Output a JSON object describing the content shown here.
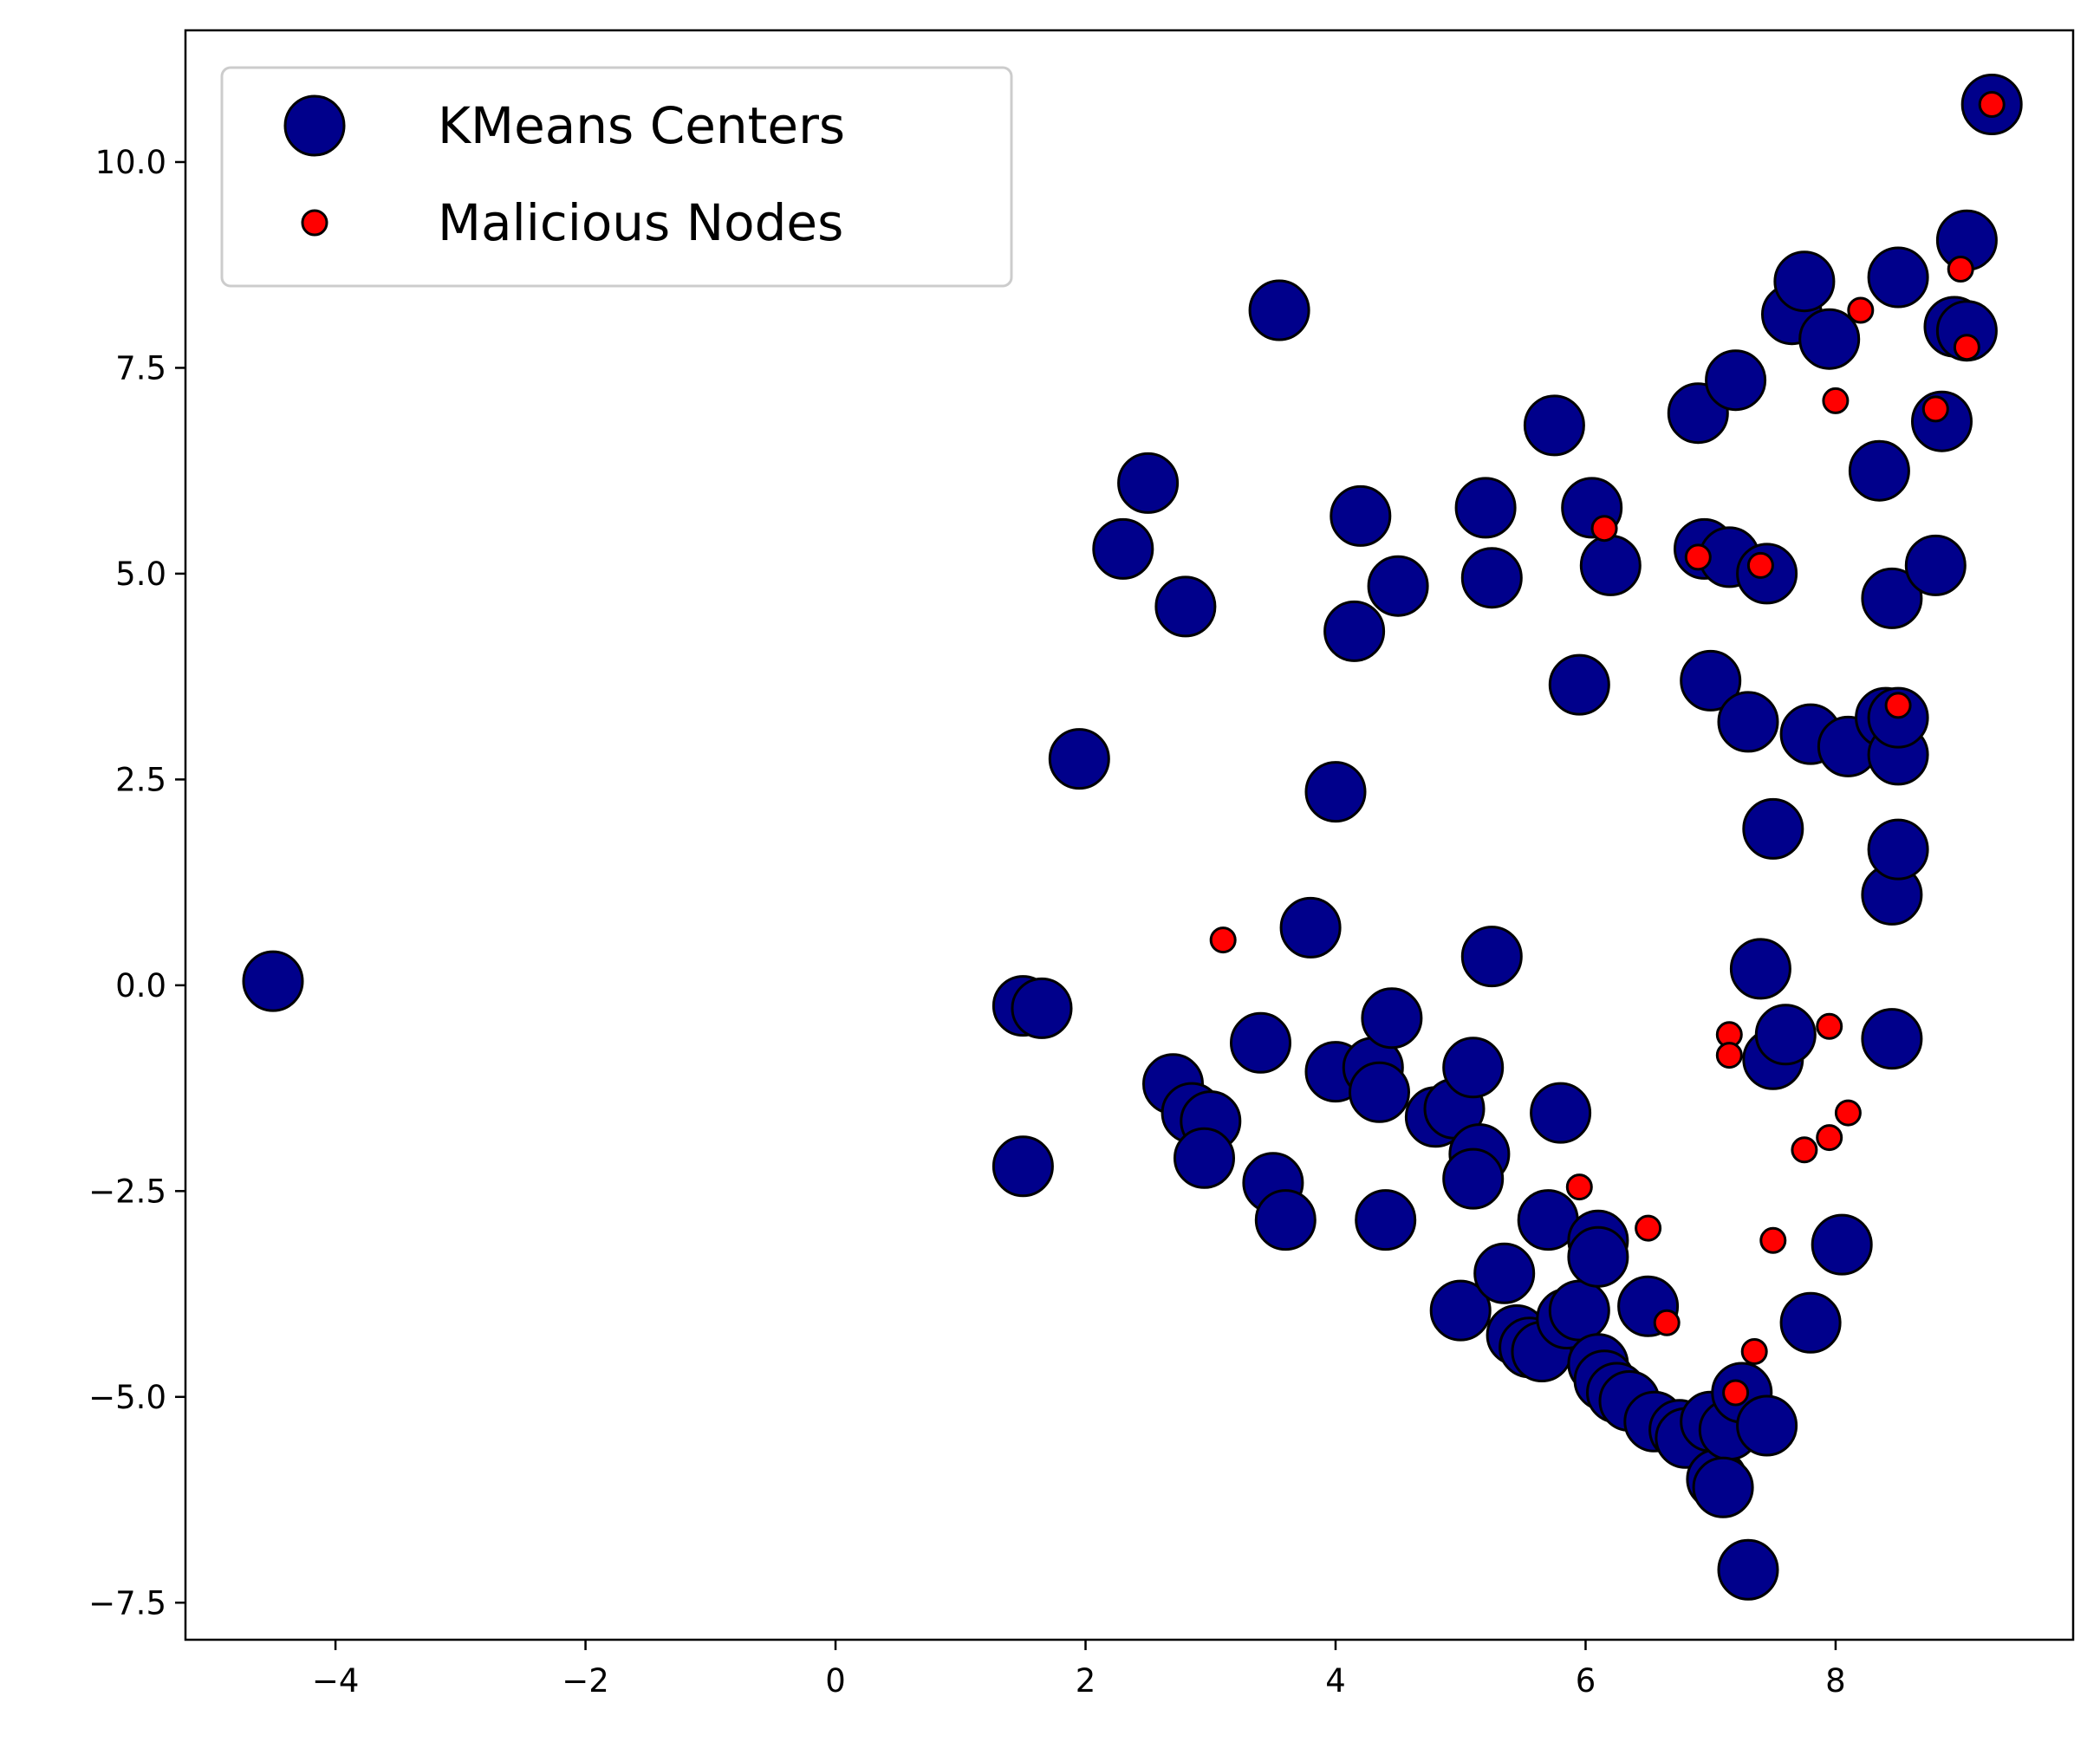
{
  "chart_data": {
    "type": "scatter",
    "title": "",
    "xlabel": "",
    "ylabel": "",
    "xlim": [
      -5.2,
      9.9
    ],
    "ylim": [
      -7.95,
      11.6
    ],
    "grid": false,
    "legend_position": "top-left",
    "x_ticks": [
      {
        "value": -4,
        "label": "−4"
      },
      {
        "value": -2,
        "label": "−2"
      },
      {
        "value": 0,
        "label": "0"
      },
      {
        "value": 2,
        "label": "2"
      },
      {
        "value": 4,
        "label": "4"
      },
      {
        "value": 6,
        "label": "6"
      },
      {
        "value": 8,
        "label": "8"
      }
    ],
    "y_ticks": [
      {
        "value": -7.5,
        "label": "−7.5"
      },
      {
        "value": -5.0,
        "label": "−5.0"
      },
      {
        "value": -2.5,
        "label": "−2.5"
      },
      {
        "value": 0.0,
        "label": "0.0"
      },
      {
        "value": 2.5,
        "label": "2.5"
      },
      {
        "value": 5.0,
        "label": "5.0"
      },
      {
        "value": 7.5,
        "label": "7.5"
      },
      {
        "value": 10.0,
        "label": "10.0"
      }
    ],
    "series": [
      {
        "name": "KMeans Centers",
        "color": "#00008b",
        "edge_color": "#000000",
        "marker": "large-circle",
        "points": [
          [
            -4.5,
            0.05
          ],
          [
            1.5,
            -0.25
          ],
          [
            1.65,
            -0.28
          ],
          [
            1.5,
            -2.2
          ],
          [
            1.95,
            2.75
          ],
          [
            2.3,
            5.3
          ],
          [
            2.5,
            6.1
          ],
          [
            2.8,
            4.6
          ],
          [
            2.7,
            -1.2
          ],
          [
            2.85,
            -1.55
          ],
          [
            3.0,
            -1.65
          ],
          [
            2.95,
            -2.1
          ],
          [
            3.5,
            -2.4
          ],
          [
            3.6,
            -2.85
          ],
          [
            3.4,
            -0.7
          ],
          [
            3.55,
            8.2
          ],
          [
            3.8,
            0.7
          ],
          [
            4.0,
            2.35
          ],
          [
            4.0,
            -1.05
          ],
          [
            4.3,
            -1.0
          ],
          [
            4.35,
            -1.3
          ],
          [
            4.45,
            -0.4
          ],
          [
            4.4,
            -2.85
          ],
          [
            4.2,
            5.7
          ],
          [
            4.15,
            4.3
          ],
          [
            4.5,
            4.85
          ],
          [
            4.8,
            -1.6
          ],
          [
            4.95,
            -1.5
          ],
          [
            5.1,
            -1.0
          ],
          [
            5.15,
            -2.05
          ],
          [
            5.1,
            -2.35
          ],
          [
            5.2,
            5.8
          ],
          [
            5.25,
            4.95
          ],
          [
            5.25,
            0.35
          ],
          [
            5.0,
            -3.95
          ],
          [
            5.35,
            -3.5
          ],
          [
            5.45,
            -4.25
          ],
          [
            5.55,
            -4.4
          ],
          [
            5.65,
            -4.45
          ],
          [
            5.7,
            -2.85
          ],
          [
            5.75,
            6.8
          ],
          [
            5.8,
            -1.55
          ],
          [
            5.85,
            -4.05
          ],
          [
            5.95,
            -3.95
          ],
          [
            5.95,
            3.65
          ],
          [
            6.05,
            5.8
          ],
          [
            6.1,
            -3.1
          ],
          [
            6.1,
            -3.3
          ],
          [
            6.1,
            -4.6
          ],
          [
            6.15,
            -4.8
          ],
          [
            6.2,
            5.1
          ],
          [
            6.25,
            -4.95
          ],
          [
            6.35,
            -5.05
          ],
          [
            6.5,
            -3.9
          ],
          [
            6.55,
            -5.3
          ],
          [
            6.75,
            -5.4
          ],
          [
            6.8,
            -5.5
          ],
          [
            6.9,
            6.95
          ],
          [
            6.95,
            5.3
          ],
          [
            7.0,
            3.7
          ],
          [
            7.0,
            -5.3
          ],
          [
            7.05,
            -6.0
          ],
          [
            7.15,
            -5.4
          ],
          [
            7.15,
            5.2
          ],
          [
            7.1,
            -6.1
          ],
          [
            7.2,
            7.35
          ],
          [
            7.25,
            -4.95
          ],
          [
            7.3,
            3.2
          ],
          [
            7.3,
            -7.1
          ],
          [
            7.4,
            0.2
          ],
          [
            7.45,
            5.0
          ],
          [
            7.45,
            -5.35
          ],
          [
            7.5,
            1.9
          ],
          [
            7.5,
            -0.9
          ],
          [
            7.6,
            -0.6
          ],
          [
            7.65,
            8.15
          ],
          [
            7.75,
            8.55
          ],
          [
            7.8,
            3.05
          ],
          [
            7.8,
            -4.1
          ],
          [
            7.95,
            7.85
          ],
          [
            8.05,
            -3.15
          ],
          [
            8.1,
            2.9
          ],
          [
            8.35,
            6.25
          ],
          [
            8.4,
            3.25
          ],
          [
            8.45,
            1.1
          ],
          [
            8.45,
            4.7
          ],
          [
            8.5,
            2.8
          ],
          [
            8.5,
            3.25
          ],
          [
            8.5,
            1.65
          ],
          [
            8.5,
            8.6
          ],
          [
            8.45,
            -0.65
          ],
          [
            8.8,
            5.1
          ],
          [
            8.85,
            6.85
          ],
          [
            8.95,
            8.0
          ],
          [
            9.05,
            9.05
          ],
          [
            9.05,
            7.95
          ],
          [
            9.25,
            10.7
          ]
        ]
      },
      {
        "name": "Malicious Nodes",
        "color": "#ff0000",
        "edge_color": "#000000",
        "marker": "small-circle",
        "points": [
          [
            3.1,
            0.55
          ],
          [
            5.95,
            -2.45
          ],
          [
            6.15,
            5.55
          ],
          [
            6.5,
            -2.95
          ],
          [
            6.65,
            -4.1
          ],
          [
            6.9,
            5.2
          ],
          [
            7.15,
            -0.6
          ],
          [
            7.15,
            -0.85
          ],
          [
            7.2,
            -4.95
          ],
          [
            7.35,
            -4.45
          ],
          [
            7.4,
            5.1
          ],
          [
            7.5,
            -3.1
          ],
          [
            7.75,
            -2.0
          ],
          [
            7.95,
            -1.85
          ],
          [
            7.95,
            -0.5
          ],
          [
            8.0,
            7.1
          ],
          [
            8.1,
            -1.55
          ],
          [
            8.2,
            8.2
          ],
          [
            8.5,
            3.4
          ],
          [
            8.8,
            7.0
          ],
          [
            9.0,
            8.7
          ],
          [
            9.05,
            7.75
          ],
          [
            9.25,
            10.7
          ]
        ]
      }
    ]
  }
}
